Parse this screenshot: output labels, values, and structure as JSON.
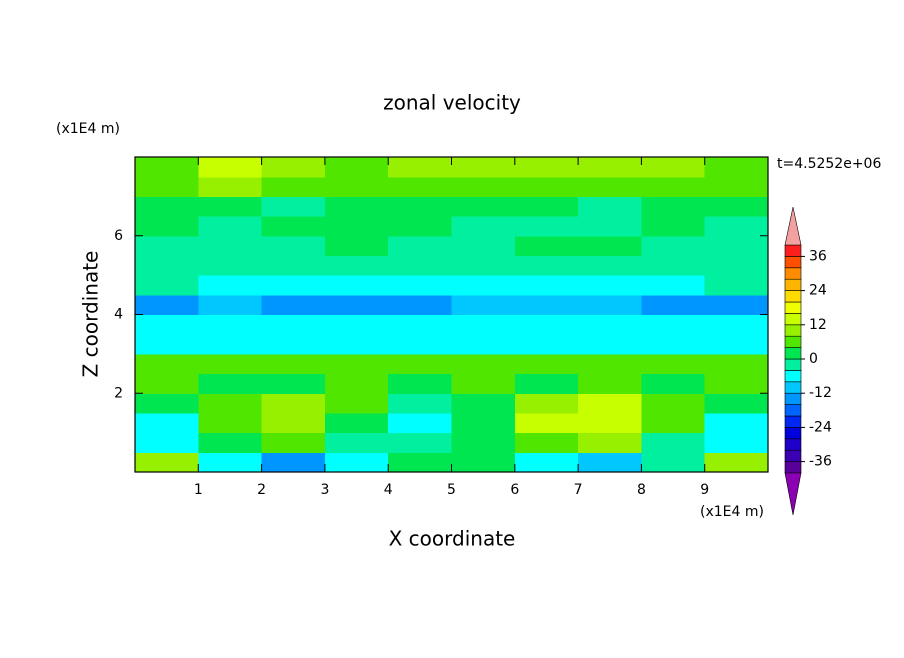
{
  "chart_data": {
    "type": "contour",
    "title": "zonal velocity",
    "x_label": "X coordinate",
    "y_label": "Z coordinate",
    "x_unit_label": "(x1E4 m)",
    "y_unit_label": "(x1E4 m)",
    "annotation": "t=4.5252e+06",
    "xlim": [
      0,
      10
    ],
    "ylim": [
      0,
      8
    ],
    "xticks": [
      1,
      2,
      3,
      4,
      5,
      6,
      7,
      8,
      9
    ],
    "yticks": [
      2,
      4,
      6
    ],
    "x": [
      0.5,
      1.5,
      2.5,
      3.5,
      4.5,
      5.5,
      6.5,
      7.5,
      8.5,
      9.5
    ],
    "y": [
      0.25,
      0.75,
      1.25,
      1.75,
      2.25,
      2.75,
      3.25,
      3.75,
      4.25,
      4.75,
      5.25,
      5.75,
      6.25,
      6.75,
      7.25,
      7.75
    ],
    "z": [
      [
        10,
        -6,
        -14,
        -6,
        2,
        2,
        -6,
        -10,
        -4,
        10
      ],
      [
        -6,
        2,
        6,
        -2,
        -4,
        2,
        6,
        8,
        -2,
        -8
      ],
      [
        -8,
        4,
        10,
        2,
        -6,
        0,
        12,
        14,
        4,
        -8
      ],
      [
        0,
        6,
        8,
        6,
        -4,
        2,
        10,
        12,
        6,
        0
      ],
      [
        4,
        2,
        2,
        6,
        2,
        4,
        2,
        4,
        2,
        4
      ],
      [
        6,
        6,
        6,
        4,
        6,
        6,
        6,
        6,
        6,
        6
      ],
      [
        -6,
        -6,
        -6,
        -6,
        -6,
        -6,
        -6,
        -6,
        -6,
        -6
      ],
      [
        -8,
        -8,
        -8,
        -8,
        -8,
        -8,
        -8,
        -8,
        -8,
        -8
      ],
      [
        -14,
        -10,
        -14,
        -14,
        -14,
        -10,
        -10,
        -10,
        -14,
        -14
      ],
      [
        -4,
        -6,
        -6,
        -6,
        -6,
        -6,
        -6,
        -6,
        -6,
        -4
      ],
      [
        -2,
        -4,
        -2,
        -2,
        -2,
        -2,
        -2,
        -2,
        -2,
        -2
      ],
      [
        -2,
        -2,
        -2,
        2,
        -2,
        -2,
        2,
        2,
        -2,
        -2
      ],
      [
        2,
        -2,
        2,
        2,
        2,
        -2,
        -2,
        -2,
        2,
        -2
      ],
      [
        2,
        2,
        -2,
        2,
        2,
        2,
        2,
        -2,
        2,
        2
      ],
      [
        6,
        10,
        6,
        6,
        6,
        6,
        4,
        6,
        6,
        6
      ],
      [
        6,
        14,
        10,
        6,
        10,
        10,
        10,
        10,
        10,
        6
      ]
    ],
    "colorbar": {
      "levels": [
        -40,
        -36,
        -32,
        -28,
        -24,
        -20,
        -16,
        -12,
        -8,
        -4,
        0,
        4,
        8,
        12,
        16,
        20,
        24,
        28,
        32,
        36,
        40
      ],
      "colors": [
        "#5a009a",
        "#3c00b4",
        "#1e00c8",
        "#0000dc",
        "#0028f0",
        "#0064ff",
        "#0096ff",
        "#00c8ff",
        "#00ffff",
        "#00f0a0",
        "#00e650",
        "#50e600",
        "#96f000",
        "#c8ff00",
        "#f0ff00",
        "#ffdc00",
        "#ffb400",
        "#ff8c00",
        "#ff5000",
        "#ff1e1e"
      ],
      "under_color": "#8c00b4",
      "over_color": "#f4a0a0",
      "ticks": [
        -36,
        -24,
        -12,
        0,
        12,
        24,
        36
      ]
    }
  }
}
